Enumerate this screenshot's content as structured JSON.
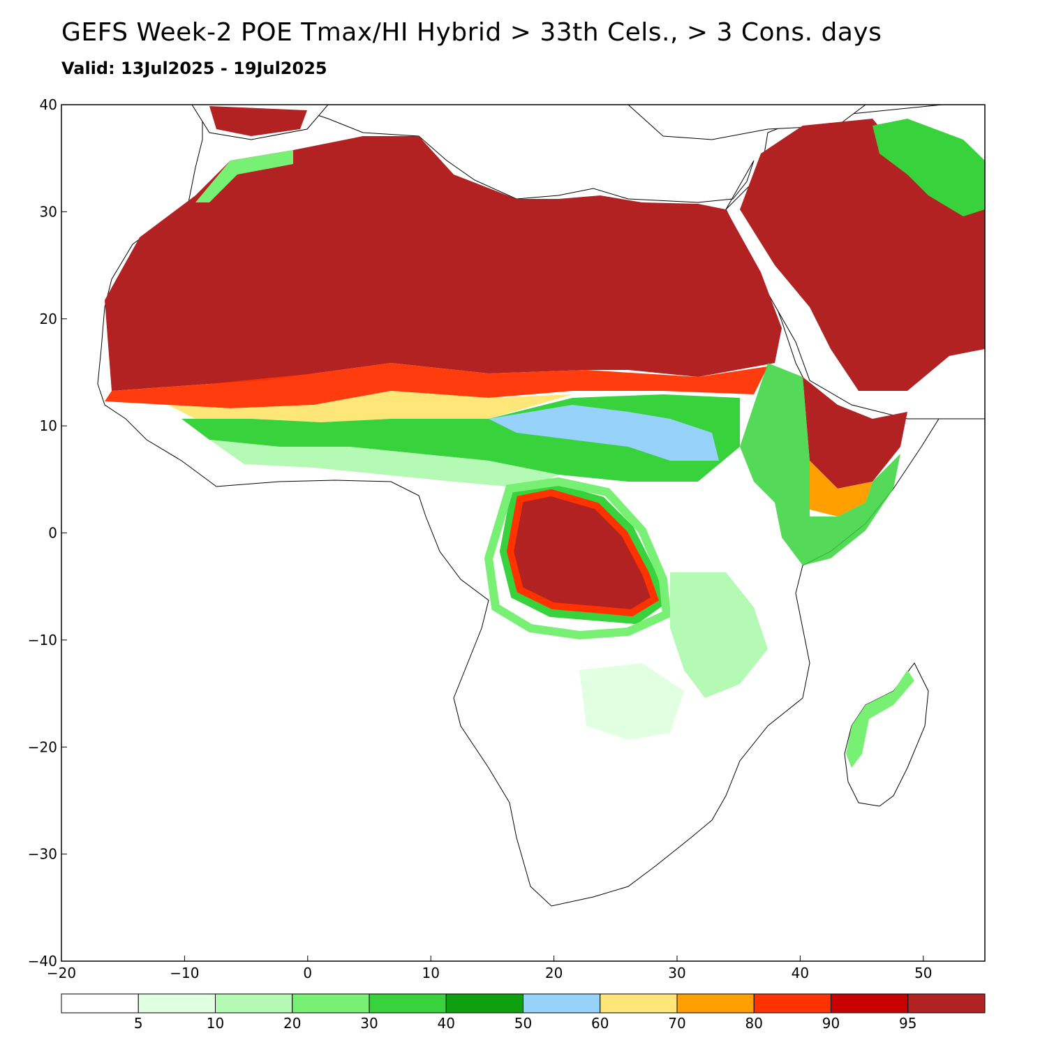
{
  "title": "GEFS Week-2 POE Tmax/HI Hybrid > 33th Cels., > 3 Cons. days",
  "subtitle": "Valid: 13Jul2025 - 19Jul2025",
  "map": {
    "region": "Africa and Middle East",
    "lon_range": [
      -20,
      55
    ],
    "lat_range": [
      -40,
      40
    ],
    "x_ticks": [
      {
        "value": -20,
        "label": "−20"
      },
      {
        "value": -10,
        "label": "−10"
      },
      {
        "value": 0,
        "label": "0"
      },
      {
        "value": 10,
        "label": "10"
      },
      {
        "value": 20,
        "label": "20"
      },
      {
        "value": 30,
        "label": "30"
      },
      {
        "value": 40,
        "label": "40"
      },
      {
        "value": 50,
        "label": "50"
      }
    ],
    "y_ticks": [
      {
        "value": 40,
        "label": "40"
      },
      {
        "value": 30,
        "label": "30"
      },
      {
        "value": 20,
        "label": "20"
      },
      {
        "value": 10,
        "label": "10"
      },
      {
        "value": 0,
        "label": "0"
      },
      {
        "value": -10,
        "label": "−10"
      },
      {
        "value": -20,
        "label": "−20"
      },
      {
        "value": -30,
        "label": "−30"
      },
      {
        "value": -40,
        "label": "−40"
      }
    ]
  },
  "colorbar": {
    "colors": [
      "#ffffff",
      "#e1ffe1",
      "#b4fab4",
      "#78f073",
      "#37d23c",
      "#0fa00f",
      "#96d2fa",
      "#ffe678",
      "#ffa000",
      "#ff3200",
      "#c80000",
      "#b22222"
    ],
    "labels": [
      "5",
      "10",
      "20",
      "30",
      "40",
      "50",
      "60",
      "70",
      "80",
      "90",
      "95"
    ]
  }
}
